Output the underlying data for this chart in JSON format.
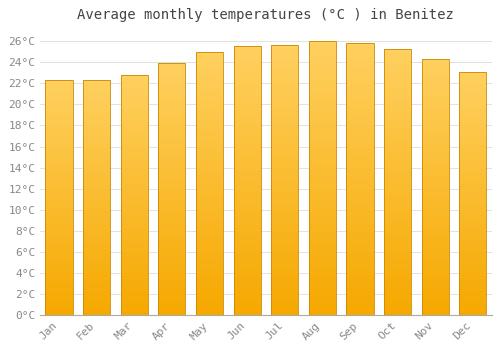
{
  "title": "Average monthly temperatures (°C ) in Benitez",
  "months": [
    "Jan",
    "Feb",
    "Mar",
    "Apr",
    "May",
    "Jun",
    "Jul",
    "Aug",
    "Sep",
    "Oct",
    "Nov",
    "Dec"
  ],
  "values": [
    22.3,
    22.3,
    22.8,
    23.9,
    25.0,
    25.5,
    25.6,
    26.0,
    25.8,
    25.2,
    24.3,
    23.1
  ],
  "bar_color_bottom": "#F5A800",
  "bar_color_top": "#FFD060",
  "bar_edge_color": "#CC8800",
  "background_color": "#FFFFFF",
  "plot_bg_color": "#FFFFFF",
  "grid_color": "#DDDDDD",
  "ylim": [
    0,
    27
  ],
  "yticks": [
    0,
    2,
    4,
    6,
    8,
    10,
    12,
    14,
    16,
    18,
    20,
    22,
    24,
    26
  ],
  "ytick_labels": [
    "0°C",
    "2°C",
    "4°C",
    "6°C",
    "8°C",
    "10°C",
    "12°C",
    "14°C",
    "16°C",
    "18°C",
    "20°C",
    "22°C",
    "24°C",
    "26°C"
  ],
  "title_fontsize": 10,
  "tick_fontsize": 8,
  "title_color": "#444444",
  "tick_color": "#888888",
  "bar_width": 0.72,
  "num_gradient_strips": 80
}
